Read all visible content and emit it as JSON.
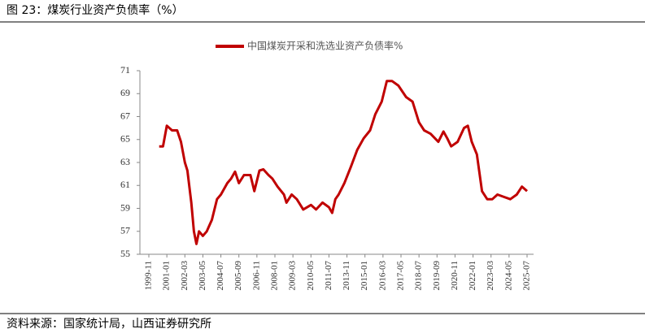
{
  "chart_data": {
    "type": "line",
    "title": "图 23：煤炭行业资产负债率（%）",
    "source": "资料来源：国家统计局，山西证券研究所",
    "xticks": [
      "1999-11",
      "2001-01",
      "2002-03",
      "2003-05",
      "2004-07",
      "2005-09",
      "2006-11",
      "2008-01",
      "2009-03",
      "2010-05",
      "2011-07",
      "2013-11",
      "2015-01",
      "2016-03",
      "2017-05",
      "2018-07",
      "2019-09",
      "2020-11",
      "2022-01",
      "2023-03",
      "2024-05",
      "2025-07"
    ],
    "x": [
      "2000-07",
      "2000-10",
      "2001-01",
      "2001-05",
      "2001-09",
      "2001-12",
      "2002-03",
      "2002-05",
      "2002-08",
      "2002-10",
      "2002-12",
      "2003-02",
      "2003-05",
      "2003-08",
      "2003-12",
      "2004-04",
      "2004-07",
      "2004-12",
      "2005-03",
      "2005-06",
      "2005-09",
      "2006-01",
      "2006-06",
      "2006-09",
      "2007-01",
      "2007-04",
      "2007-08",
      "2007-11",
      "2008-03",
      "2008-08",
      "2008-10",
      "2009-02",
      "2009-06",
      "2009-11",
      "2010-05",
      "2010-09",
      "2011-02",
      "2011-07",
      "2011-12",
      "2012-05",
      "2012-10",
      "2013-07",
      "2014-02",
      "2014-07",
      "2014-12",
      "2015-05",
      "2015-09",
      "2016-02",
      "2016-06",
      "2016-10",
      "2017-03",
      "2017-09",
      "2018-02",
      "2018-07",
      "2018-11",
      "2019-04",
      "2019-10",
      "2020-02",
      "2020-05",
      "2020-08",
      "2021-01",
      "2021-06",
      "2021-09",
      "2021-12",
      "2022-04",
      "2022-08",
      "2022-12",
      "2023-04",
      "2023-08",
      "2024-01",
      "2024-06",
      "2024-11",
      "2025-03",
      "2025-07"
    ],
    "series": [
      {
        "name": "中国煤炭开采和洗选业资产负债率%",
        "color": "#c00000",
        "values": [
          64.4,
          64.4,
          66.2,
          65.8,
          65.8,
          64.8,
          63.0,
          62.3,
          59.5,
          57.0,
          55.9,
          57.0,
          56.6,
          57.0,
          58.0,
          59.8,
          60.2,
          61.2,
          61.6,
          62.2,
          61.2,
          61.9,
          61.9,
          60.5,
          62.3,
          62.4,
          61.9,
          61.6,
          60.9,
          60.2,
          59.5,
          60.2,
          59.8,
          58.9,
          59.3,
          58.9,
          59.5,
          59.1,
          58.6,
          59.8,
          60.2,
          61.2,
          62.6,
          64.1,
          65.1,
          65.8,
          67.2,
          68.3,
          70.1,
          70.1,
          69.7,
          68.7,
          68.3,
          66.5,
          65.8,
          65.5,
          64.8,
          65.7,
          65.1,
          64.4,
          64.8,
          66.0,
          66.2,
          64.8,
          63.7,
          60.5,
          59.8,
          59.8,
          60.2,
          60.0,
          59.8,
          60.2,
          60.9,
          60.5
        ]
      }
    ],
    "ylim": [
      55,
      71
    ],
    "yticks": [
      55,
      57,
      59,
      61,
      63,
      65,
      67,
      69,
      71
    ],
    "legend": "top"
  }
}
